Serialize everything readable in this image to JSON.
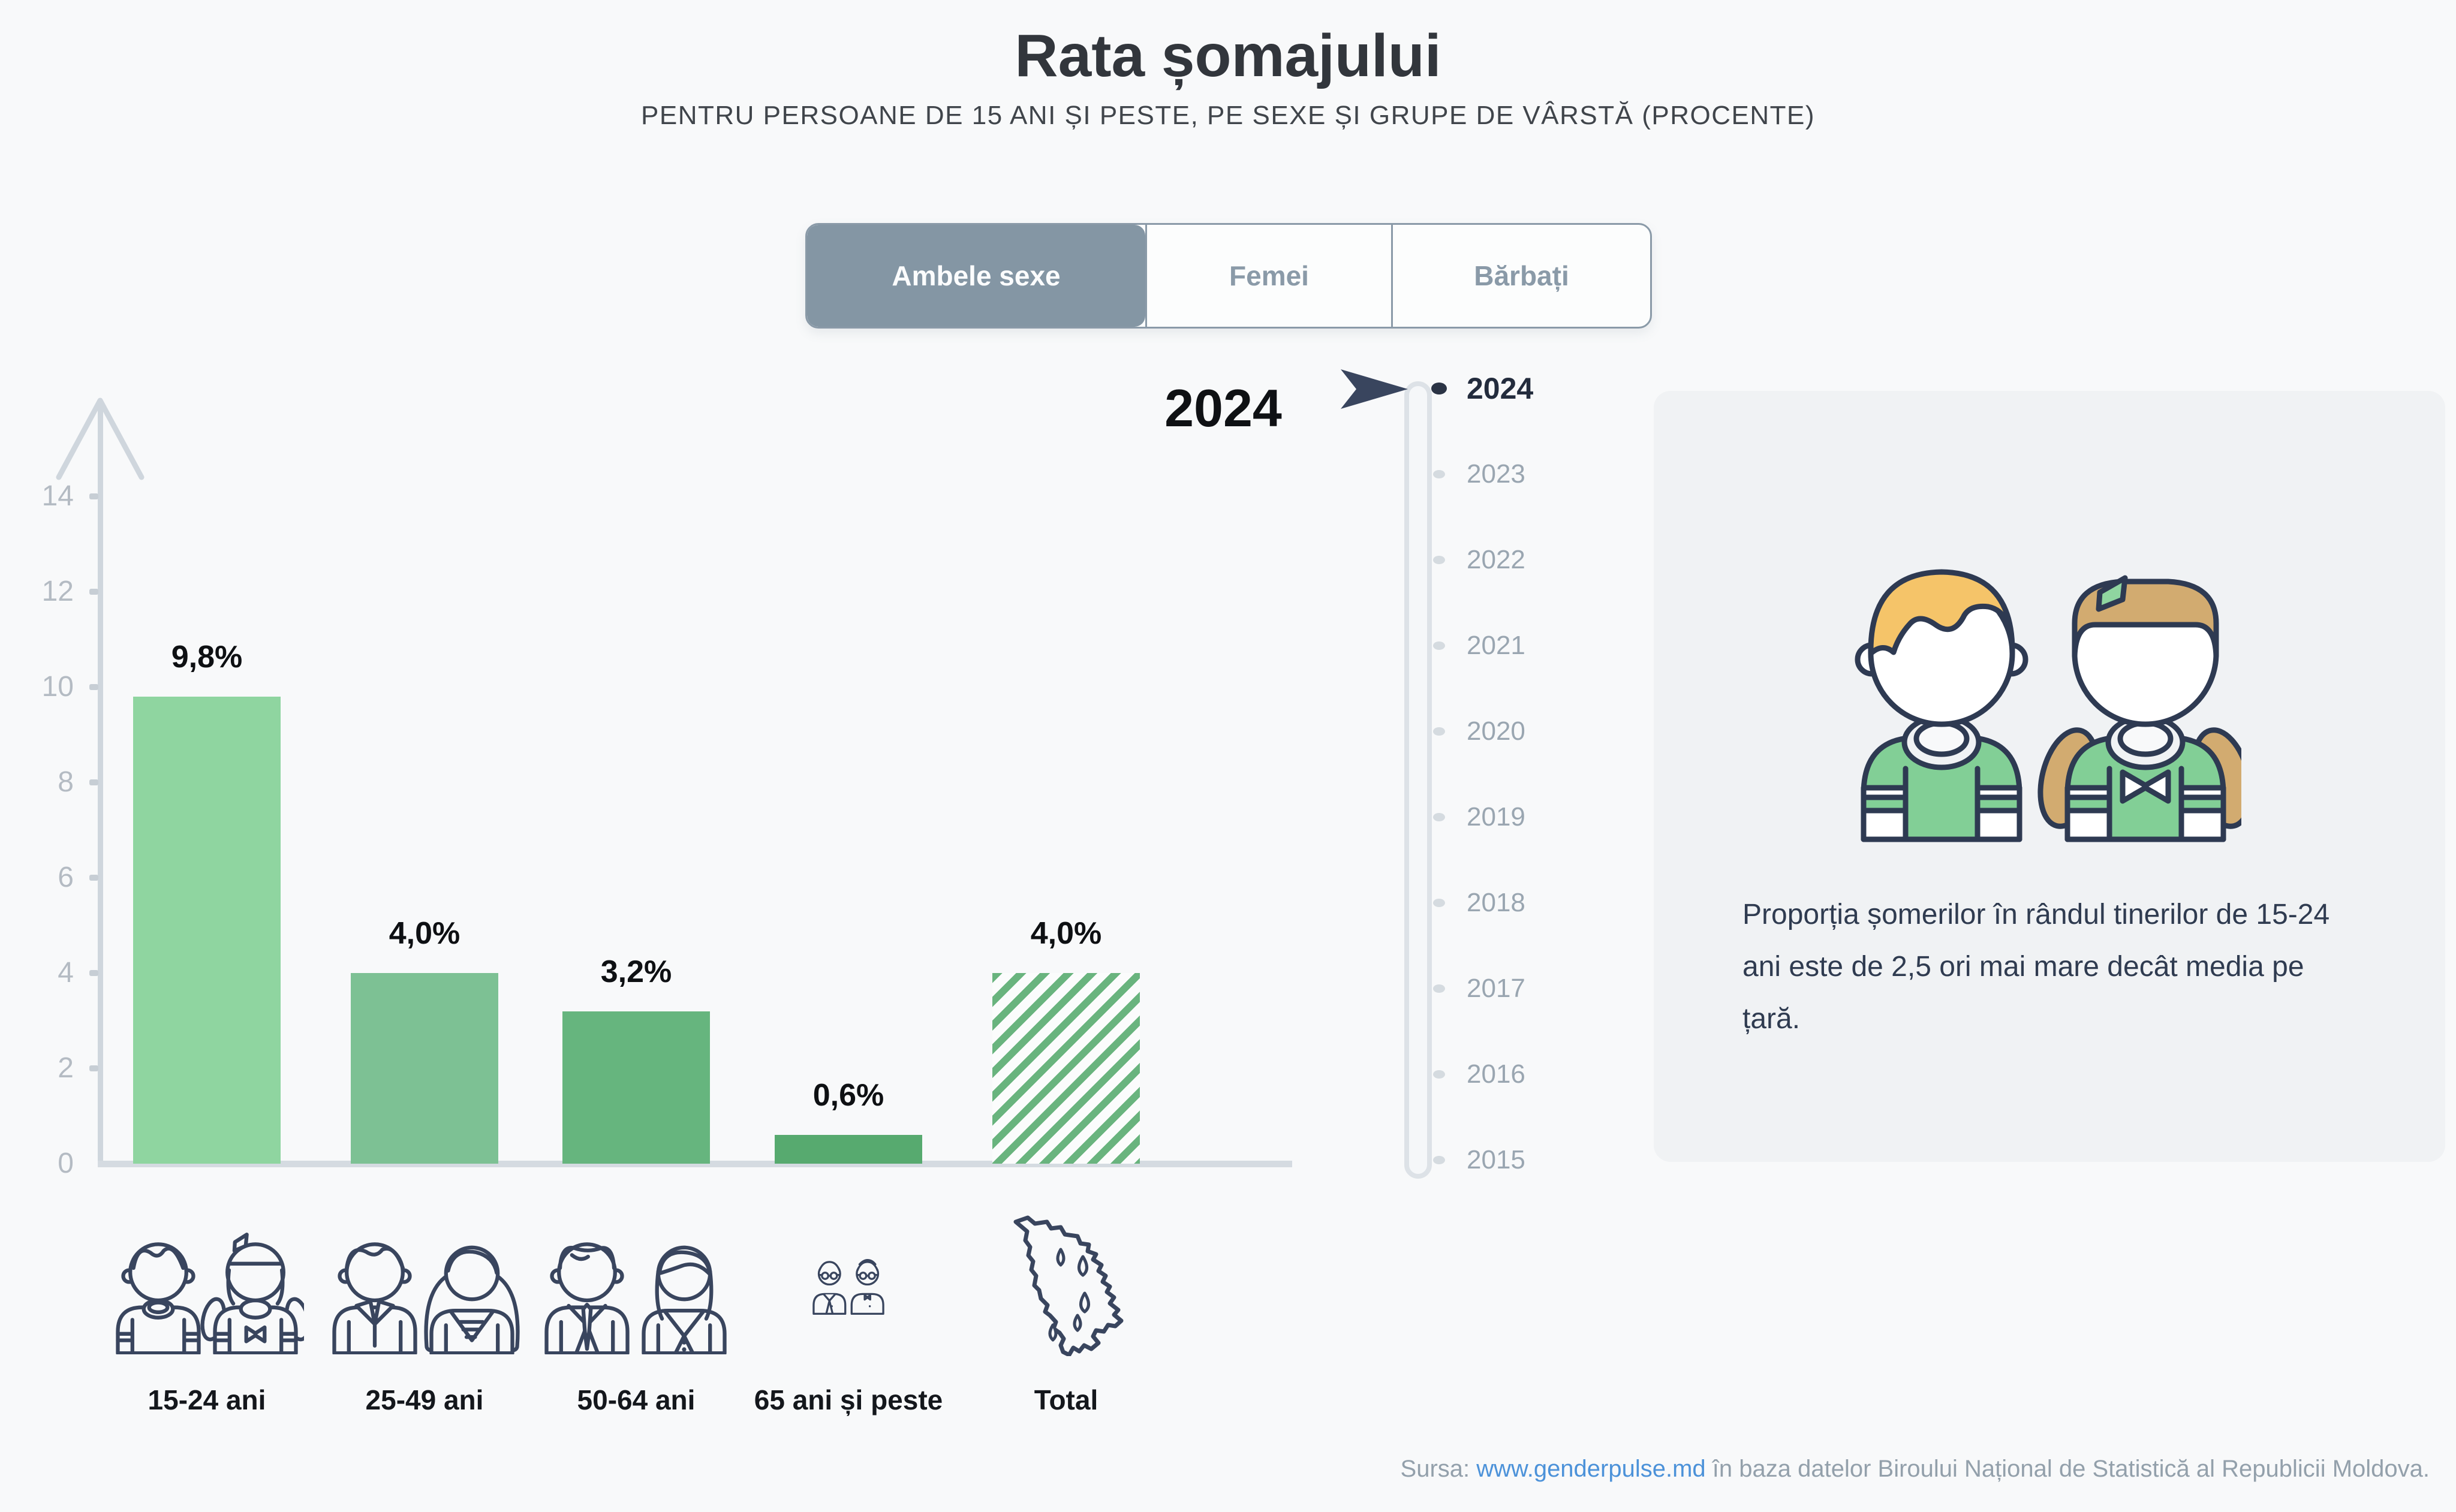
{
  "header": {
    "title": "Rata șomajului",
    "subtitle": "PENTRU PERSOANE DE 15 ANI ȘI PESTE, PE SEXE ȘI GRUPE DE VÂRSTĂ (PROCENTE)"
  },
  "tabs": {
    "items": [
      {
        "label": "Ambele sexe",
        "selected": true
      },
      {
        "label": "Femei",
        "selected": false
      },
      {
        "label": "Bărbați",
        "selected": false
      }
    ]
  },
  "chart_data": {
    "type": "bar",
    "title": "Rata șomajului",
    "subtitle": "PENTRU PERSOANE DE 15 ANI ȘI PESTE, PE SEXE ȘI GRUPE DE VÂRSTĂ (PROCENTE)",
    "selected_filter": "Ambele sexe",
    "year": "2024",
    "categories": [
      "15-24 ani",
      "25-49 ani",
      "50-64 ani",
      "65 ani și peste",
      "Total"
    ],
    "values": [
      9.8,
      4.0,
      3.2,
      0.6,
      4.0
    ],
    "value_labels": [
      "9,8%",
      "4,0%",
      "3,2%",
      "0,6%",
      "4,0%"
    ],
    "ylim": [
      0,
      15
    ],
    "yticks": [
      0,
      2,
      4,
      6,
      8,
      10,
      12,
      14
    ],
    "xlabel": "",
    "ylabel": "",
    "grid": false,
    "legend": "none",
    "bar_colors": [
      "#8fd5a0",
      "#7dc194",
      "#66b57e",
      "#57aa6f",
      "#69b47e"
    ],
    "total_bar_style": "hatched"
  },
  "big_year_label": "2024",
  "timeline": {
    "years": [
      "2024",
      "2023",
      "2022",
      "2021",
      "2020",
      "2019",
      "2018",
      "2017",
      "2016",
      "2015"
    ],
    "selected": "2024"
  },
  "infocard": {
    "text": "Proporția șomerilor în rândul tinerilor de 15-24 ani este de 2,5 ori mai mare decât media pe țară."
  },
  "source": {
    "prefix": "Sursa: ",
    "link_text": "www.genderpulse.md",
    "suffix": " în baza datelor Biroului Național de Statistică al Republicii Moldova."
  },
  "colors": {
    "accent_green": "#7fd096",
    "tab_selected_bg": "#8496a4",
    "link_blue": "#4c92d9",
    "outline_navy": "#39455e",
    "hair_blond": "#f5c469",
    "hair_tan": "#d2ab70"
  }
}
